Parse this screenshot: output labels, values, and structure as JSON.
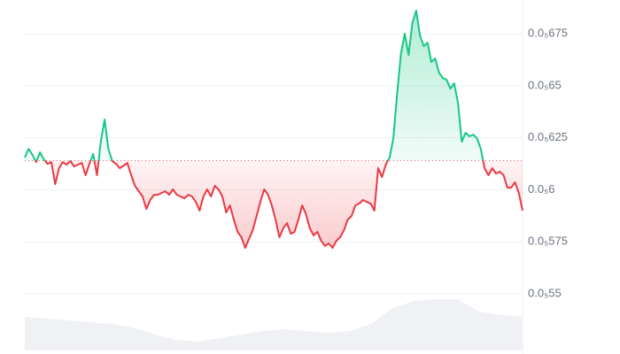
{
  "chart_data": {
    "type": "line",
    "series": [
      {
        "name": "price",
        "color_up": "#16c784",
        "color_down": "#ea3943",
        "values": [
          6.155e-06,
          6.197e-06,
          6.168e-06,
          6.133e-06,
          6.18e-06,
          6.146e-06,
          6.125e-06,
          6.133e-06,
          6.027e-06,
          6.104e-06,
          6.133e-06,
          6.121e-06,
          6.138e-06,
          6.112e-06,
          6.121e-06,
          6.129e-06,
          6.07e-06,
          6.125e-06,
          6.172e-06,
          6.07e-06,
          6.231e-06,
          6.338e-06,
          6.197e-06,
          6.138e-06,
          6.125e-06,
          6.104e-06,
          6.116e-06,
          6.129e-06,
          6.07e-06,
          6.019e-06,
          5.993e-06,
          5.968e-06,
          5.908e-06,
          5.951e-06,
          5.976e-06,
          5.976e-06,
          5.985e-06,
          5.993e-06,
          5.976e-06,
          6.002e-06,
          5.976e-06,
          5.968e-06,
          5.959e-06,
          5.976e-06,
          5.968e-06,
          5.942e-06,
          5.9e-06,
          5.968e-06,
          6.002e-06,
          5.968e-06,
          6.019e-06,
          6.002e-06,
          5.968e-06,
          5.891e-06,
          5.925e-06,
          5.857e-06,
          5.798e-06,
          5.772e-06,
          5.721e-06,
          5.764e-06,
          5.806e-06,
          5.874e-06,
          5.942e-06,
          6.002e-06,
          5.976e-06,
          5.925e-06,
          5.857e-06,
          5.772e-06,
          5.815e-06,
          5.84e-06,
          5.789e-06,
          5.798e-06,
          5.857e-06,
          5.925e-06,
          5.883e-06,
          5.815e-06,
          5.781e-06,
          5.798e-06,
          5.755e-06,
          5.73e-06,
          5.742e-06,
          5.721e-06,
          5.755e-06,
          5.772e-06,
          5.806e-06,
          5.857e-06,
          5.874e-06,
          5.925e-06,
          5.934e-06,
          5.951e-06,
          5.942e-06,
          5.934e-06,
          5.9e-06,
          6.104e-06,
          6.061e-06,
          6.121e-06,
          6.155e-06,
          6.248e-06,
          6.465e-06,
          6.656e-06,
          6.75e-06,
          6.648e-06,
          6.801e-06,
          6.861e-06,
          6.741e-06,
          6.69e-06,
          6.707e-06,
          6.614e-06,
          6.631e-06,
          6.563e-06,
          6.537e-06,
          6.529e-06,
          6.486e-06,
          6.512e-06,
          6.418e-06,
          6.231e-06,
          6.274e-06,
          6.257e-06,
          6.265e-06,
          6.248e-06,
          6.197e-06,
          6.104e-06,
          6.07e-06,
          6.104e-06,
          6.078e-06,
          6.087e-06,
          6.07e-06,
          6.01e-06,
          6.01e-06,
          6.036e-06,
          5.985e-06,
          5.9e-06
        ]
      },
      {
        "name": "volume",
        "color": "#eff1f4",
        "axis": "y2",
        "values": [
          38,
          36,
          34,
          32,
          30,
          26,
          18,
          12,
          10,
          14,
          18,
          22,
          24,
          22,
          20,
          22,
          30,
          48,
          56,
          58,
          58,
          44,
          40,
          38
        ]
      }
    ],
    "baseline": 6.14e-06,
    "ylim": [
      5.228e-06,
      6.912e-06
    ],
    "yticks": [
      {
        "value": 6.75e-06,
        "label": "0.0₅675"
      },
      {
        "value": 6.5e-06,
        "label": "0.0₅65"
      },
      {
        "value": 6.25e-06,
        "label": "0.0₅625"
      },
      {
        "value": 6e-06,
        "label": "0.0₅6"
      },
      {
        "value": 5.75e-06,
        "label": "0.0₅575"
      },
      {
        "value": 5.5e-06,
        "label": "0.0₅55"
      }
    ],
    "y2lim": [
      0,
      100
    ],
    "grid": true
  }
}
